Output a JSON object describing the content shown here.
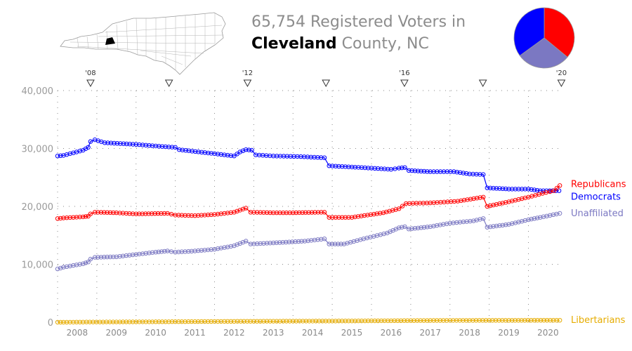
{
  "header": {
    "count": "65,754",
    "suffix": "Registered Voters in",
    "county": "Cleveland",
    "rest": "County, NC"
  },
  "map": {
    "state": "NC",
    "highlighted_county": "Cleveland",
    "highlight_color": "#000000"
  },
  "pie": [
    {
      "party": "Republicans",
      "share": 0.36,
      "color": "#ff0000"
    },
    {
      "party": "Unaffiliated",
      "share": 0.29,
      "color": "#7b78c2"
    },
    {
      "party": "Democrats",
      "share": 0.35,
      "color": "#0000ff"
    }
  ],
  "chart_data": {
    "type": "line",
    "title": "65,754 Registered Voters in Cleveland County, NC",
    "xlabel": "",
    "ylabel": "",
    "xlim": [
      2008.0,
      2020.85
    ],
    "ylim": [
      0,
      40000
    ],
    "grid": "dotted",
    "x_ticks": [
      "2008",
      "2009",
      "2010",
      "2011",
      "2012",
      "2013",
      "2014",
      "2015",
      "2016",
      "2017",
      "2018",
      "2019",
      "2020"
    ],
    "y_ticks": [
      "0",
      "10,000",
      "20,000",
      "30,000",
      "40,000"
    ],
    "y_tick_values": [
      0,
      10000,
      20000,
      30000,
      40000
    ],
    "election_markers": [
      {
        "x": 2008.84,
        "label": "'08"
      },
      {
        "x": 2010.84,
        "label": ""
      },
      {
        "x": 2012.84,
        "label": "'12"
      },
      {
        "x": 2014.84,
        "label": ""
      },
      {
        "x": 2016.84,
        "label": "'16"
      },
      {
        "x": 2018.84,
        "label": ""
      },
      {
        "x": 2020.84,
        "label": "'20"
      }
    ],
    "series": [
      {
        "name": "Democrats",
        "color": "#0000ff",
        "points": [
          [
            2008.0,
            28700
          ],
          [
            2008.15,
            28800
          ],
          [
            2008.65,
            29700
          ],
          [
            2008.78,
            30200
          ],
          [
            2008.84,
            31200
          ],
          [
            2008.95,
            31500
          ],
          [
            2009.2,
            31000
          ],
          [
            2010.0,
            30700
          ],
          [
            2010.75,
            30300
          ],
          [
            2011.0,
            30200
          ],
          [
            2011.1,
            29800
          ],
          [
            2012.0,
            29100
          ],
          [
            2012.5,
            28700
          ],
          [
            2012.65,
            29400
          ],
          [
            2012.8,
            29800
          ],
          [
            2012.95,
            29700
          ],
          [
            2013.05,
            28900
          ],
          [
            2013.5,
            28700
          ],
          [
            2014.2,
            28600
          ],
          [
            2014.8,
            28400
          ],
          [
            2014.92,
            27000
          ],
          [
            2015.5,
            26800
          ],
          [
            2016.5,
            26400
          ],
          [
            2016.7,
            26600
          ],
          [
            2016.85,
            26700
          ],
          [
            2016.95,
            26200
          ],
          [
            2017.5,
            26000
          ],
          [
            2018.1,
            26000
          ],
          [
            2018.5,
            25600
          ],
          [
            2018.85,
            25500
          ],
          [
            2018.95,
            23200
          ],
          [
            2019.5,
            23000
          ],
          [
            2020.0,
            23000
          ],
          [
            2020.3,
            22700
          ],
          [
            2020.78,
            22700
          ]
        ]
      },
      {
        "name": "Republicans",
        "color": "#ff0000",
        "points": [
          [
            2008.0,
            17900
          ],
          [
            2008.15,
            18000
          ],
          [
            2008.65,
            18200
          ],
          [
            2008.78,
            18300
          ],
          [
            2008.84,
            18700
          ],
          [
            2008.95,
            19000
          ],
          [
            2009.5,
            18900
          ],
          [
            2010.0,
            18700
          ],
          [
            2010.8,
            18800
          ],
          [
            2011.0,
            18500
          ],
          [
            2011.5,
            18400
          ],
          [
            2012.0,
            18600
          ],
          [
            2012.5,
            19000
          ],
          [
            2012.8,
            19700
          ],
          [
            2012.92,
            19000
          ],
          [
            2013.5,
            18900
          ],
          [
            2014.0,
            18900
          ],
          [
            2014.8,
            19000
          ],
          [
            2014.92,
            18100
          ],
          [
            2015.5,
            18100
          ],
          [
            2016.3,
            18900
          ],
          [
            2016.7,
            19600
          ],
          [
            2016.88,
            20500
          ],
          [
            2017.5,
            20600
          ],
          [
            2018.2,
            20900
          ],
          [
            2018.85,
            21600
          ],
          [
            2018.95,
            20000
          ],
          [
            2019.5,
            20800
          ],
          [
            2020.0,
            21600
          ],
          [
            2020.45,
            22400
          ],
          [
            2020.65,
            22700
          ],
          [
            2020.8,
            23600
          ]
        ]
      },
      {
        "name": "Unaffiliated",
        "color": "#7b78c2",
        "points": [
          [
            2008.0,
            9200
          ],
          [
            2008.15,
            9500
          ],
          [
            2008.65,
            10100
          ],
          [
            2008.78,
            10400
          ],
          [
            2008.84,
            10900
          ],
          [
            2008.95,
            11200
          ],
          [
            2009.5,
            11300
          ],
          [
            2010.0,
            11700
          ],
          [
            2010.5,
            12100
          ],
          [
            2010.8,
            12300
          ],
          [
            2011.0,
            12100
          ],
          [
            2011.5,
            12300
          ],
          [
            2012.0,
            12600
          ],
          [
            2012.5,
            13200
          ],
          [
            2012.8,
            14000
          ],
          [
            2012.92,
            13500
          ],
          [
            2013.5,
            13700
          ],
          [
            2014.3,
            14000
          ],
          [
            2014.8,
            14400
          ],
          [
            2014.92,
            13500
          ],
          [
            2015.3,
            13500
          ],
          [
            2015.8,
            14400
          ],
          [
            2016.4,
            15400
          ],
          [
            2016.7,
            16300
          ],
          [
            2016.85,
            16500
          ],
          [
            2016.95,
            16100
          ],
          [
            2017.5,
            16500
          ],
          [
            2018.0,
            17100
          ],
          [
            2018.6,
            17500
          ],
          [
            2018.85,
            17900
          ],
          [
            2018.95,
            16400
          ],
          [
            2019.5,
            16900
          ],
          [
            2020.0,
            17700
          ],
          [
            2020.3,
            18100
          ],
          [
            2020.8,
            18800
          ]
        ]
      },
      {
        "name": "Libertarians",
        "color": "#e6ac00",
        "points": [
          [
            2008.0,
            0
          ],
          [
            2008.15,
            0
          ],
          [
            2008.65,
            30
          ],
          [
            2009.5,
            50
          ],
          [
            2010.5,
            80
          ],
          [
            2011.5,
            110
          ],
          [
            2012.5,
            150
          ],
          [
            2013.5,
            170
          ],
          [
            2014.5,
            200
          ],
          [
            2015.5,
            220
          ],
          [
            2016.5,
            260
          ],
          [
            2017.5,
            300
          ],
          [
            2018.5,
            320
          ],
          [
            2019.5,
            330
          ],
          [
            2020.8,
            340
          ]
        ]
      }
    ],
    "end_labels": [
      {
        "text": "Republicans",
        "series": "Republicans",
        "color": "#ff0000"
      },
      {
        "text": "Democrats",
        "series": "Democrats",
        "color": "#0000ff"
      },
      {
        "text": "Unaffiliated",
        "series": "Unaffiliated",
        "color": "#7b78c2"
      },
      {
        "text": "Libertarians",
        "series": "Libertarians",
        "color": "#e6ac00"
      }
    ]
  }
}
